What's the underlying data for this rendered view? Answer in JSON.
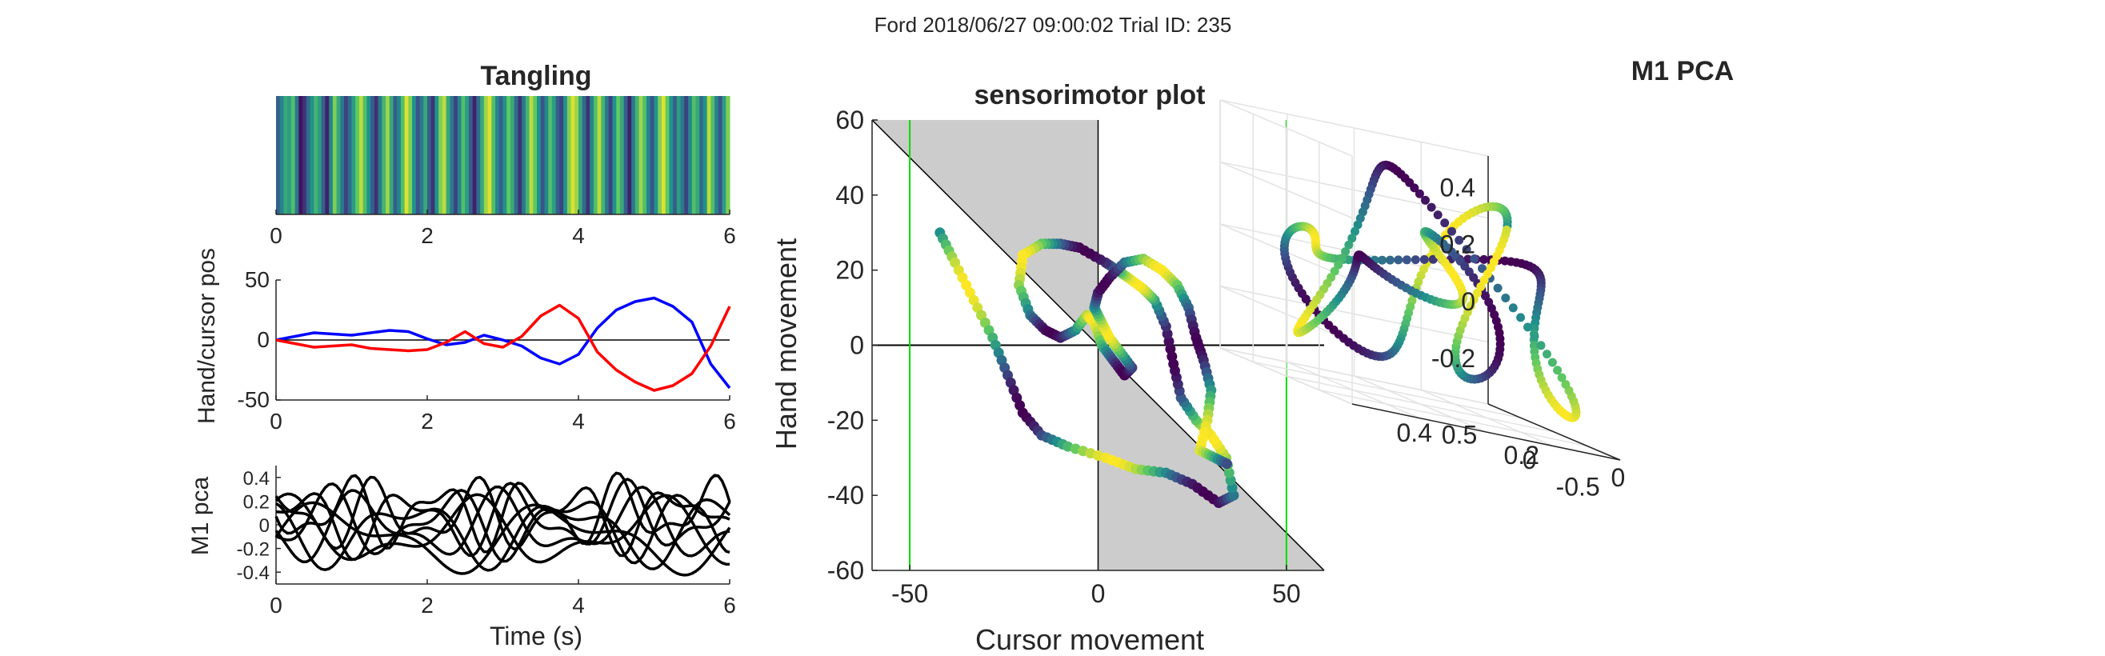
{
  "figure": {
    "suptitle": "Ford 2018/06/27 09:00:02 Trial ID: 235"
  },
  "colors": {
    "hand": "#0000ff",
    "cursor": "#ff0000",
    "pca_lines": "#000000",
    "shade": "#cccccc",
    "limit_lines": "#00dd00",
    "axis": "#262626",
    "viridis": [
      "#440154",
      "#3b528b",
      "#21918c",
      "#5ec962",
      "#fde725"
    ]
  },
  "chart_data": [
    {
      "id": "tangling",
      "type": "heatmap",
      "title": "Tangling",
      "xlabel": "",
      "ylabel": "",
      "xlim": [
        0,
        6
      ],
      "xticks": [
        "0",
        "2",
        "4",
        "6"
      ],
      "colormap": "viridis",
      "values": [
        0.3,
        0.45,
        0.6,
        0.55,
        0.7,
        0.4,
        0.05,
        0.15,
        0.35,
        0.5,
        0.65,
        0.55,
        0.3,
        0.1,
        0.45,
        0.8,
        0.6,
        0.4,
        0.2,
        0.35,
        0.55,
        0.75,
        0.9,
        0.7,
        0.5,
        0.3,
        0.15,
        0.4,
        0.65,
        0.85,
        0.6,
        0.3,
        0.45,
        0.7,
        0.95,
        0.8,
        0.5,
        0.25,
        0.4,
        0.6,
        0.3,
        0.15,
        0.5,
        0.8,
        0.9,
        0.6,
        0.4,
        0.2,
        0.45,
        0.7,
        0.55,
        0.3,
        0.1,
        0.35,
        0.6,
        0.85,
        0.95,
        0.7,
        0.45,
        0.3,
        0.5,
        0.75,
        0.6,
        0.35,
        0.15,
        0.4,
        0.65,
        0.9,
        0.75,
        0.5,
        0.25,
        0.45,
        0.7,
        0.55,
        0.3,
        0.2,
        0.5,
        0.8,
        0.95,
        0.85,
        0.6,
        0.35,
        0.15,
        0.45,
        0.7,
        0.9,
        0.65,
        0.4,
        0.2,
        0.5,
        0.75,
        0.6,
        0.3,
        0.1,
        0.4,
        0.65,
        0.85,
        0.7,
        0.45,
        0.25,
        0.5,
        0.8,
        0.95,
        0.75,
        0.5,
        0.3,
        0.55,
        0.4,
        0.2,
        0.45,
        0.7,
        0.6,
        0.35,
        0.5,
        0.9,
        0.7,
        0.45,
        0.25,
        0.55,
        0.8
      ]
    },
    {
      "id": "handcursor",
      "type": "line",
      "title": "",
      "xlabel": "",
      "ylabel": "Hand/cursor pos",
      "xlim": [
        0,
        6
      ],
      "ylim": [
        -50,
        50
      ],
      "xticks": [
        "0",
        "2",
        "4",
        "6"
      ],
      "yticks": [
        "50",
        "0",
        "-50"
      ],
      "zero_line": true,
      "series": [
        {
          "key": "hand",
          "x": [
            0,
            0.25,
            0.5,
            0.75,
            1.0,
            1.25,
            1.5,
            1.75,
            2.0,
            2.25,
            2.5,
            2.75,
            3.0,
            3.25,
            3.5,
            3.75,
            4.0,
            4.25,
            4.5,
            4.75,
            5.0,
            5.25,
            5.5,
            5.75,
            6.0
          ],
          "values": [
            0,
            3,
            6,
            5,
            4,
            6,
            8,
            7,
            1,
            -4,
            -2,
            4,
            0,
            -5,
            -15,
            -20,
            -12,
            10,
            25,
            32,
            35,
            28,
            15,
            -20,
            -40
          ]
        },
        {
          "key": "cursor",
          "x": [
            0,
            0.25,
            0.5,
            0.75,
            1.0,
            1.25,
            1.5,
            1.75,
            2.0,
            2.25,
            2.5,
            2.75,
            3.0,
            3.25,
            3.5,
            3.75,
            4.0,
            4.25,
            4.5,
            4.75,
            5.0,
            5.25,
            5.5,
            5.75,
            6.0
          ],
          "values": [
            0,
            -3,
            -6,
            -5,
            -4,
            -7,
            -8,
            -9,
            -8,
            -2,
            7,
            -3,
            -6,
            3,
            20,
            29,
            18,
            -10,
            -25,
            -35,
            -42,
            -38,
            -28,
            -5,
            28
          ]
        }
      ]
    },
    {
      "id": "m1pca",
      "type": "line",
      "title": "",
      "xlabel": "Time (s)",
      "ylabel": "M1 pca",
      "xlim": [
        0,
        6
      ],
      "ylim": [
        -0.5,
        0.5
      ],
      "xticks": [
        "0",
        "2",
        "4",
        "6"
      ],
      "yticks": [
        "0.4",
        "0.2",
        "0",
        "-0.2",
        "-0.4"
      ],
      "n_series": 8
    },
    {
      "id": "sensorimotor",
      "type": "scatter",
      "title": "sensorimotor plot",
      "xlabel": "Cursor movement",
      "ylabel": "Hand movement",
      "xlim": [
        -60,
        60
      ],
      "ylim": [
        -60,
        60
      ],
      "xticks": [
        "-50",
        "0",
        "50"
      ],
      "yticks": [
        "60",
        "40",
        "20",
        "0",
        "-20",
        "-40",
        "-60"
      ],
      "limit_x": [
        -50,
        50
      ],
      "points": [
        [
          -42,
          30
        ],
        [
          -38,
          22
        ],
        [
          -33,
          12
        ],
        [
          -28,
          2
        ],
        [
          -24,
          -8
        ],
        [
          -20,
          -18
        ],
        [
          -15,
          -24
        ],
        [
          -8,
          -27
        ],
        [
          2,
          -30
        ],
        [
          10,
          -33
        ],
        [
          18,
          -34
        ],
        [
          25,
          -37
        ],
        [
          32,
          -42
        ],
        [
          36,
          -40
        ],
        [
          34,
          -30
        ],
        [
          30,
          -24
        ],
        [
          26,
          -20
        ],
        [
          22,
          -14
        ],
        [
          20,
          -5
        ],
        [
          18,
          5
        ],
        [
          15,
          12
        ],
        [
          12,
          15
        ],
        [
          8,
          18
        ],
        [
          5,
          20
        ],
        [
          2,
          22
        ],
        [
          -5,
          26
        ],
        [
          -10,
          27
        ],
        [
          -15,
          27
        ],
        [
          -20,
          24
        ],
        [
          -21,
          16
        ],
        [
          -18,
          8
        ],
        [
          -14,
          4
        ],
        [
          -10,
          2
        ],
        [
          -6,
          4
        ],
        [
          -3,
          8
        ],
        [
          -1,
          6
        ],
        [
          1,
          0
        ],
        [
          4,
          -4
        ],
        [
          7,
          -8
        ],
        [
          9,
          -6
        ],
        [
          6,
          -2
        ],
        [
          3,
          2
        ],
        [
          1,
          6
        ],
        [
          -1,
          10
        ],
        [
          0,
          14
        ],
        [
          3,
          18
        ],
        [
          7,
          22
        ],
        [
          12,
          23
        ],
        [
          17,
          20
        ],
        [
          21,
          16
        ],
        [
          24,
          10
        ],
        [
          26,
          2
        ],
        [
          28,
          -4
        ],
        [
          30,
          -12
        ],
        [
          29,
          -20
        ],
        [
          27,
          -28
        ],
        [
          31,
          -30
        ],
        [
          35,
          -32
        ]
      ]
    },
    {
      "id": "m1pca3d",
      "type": "scatter",
      "title": "M1 PCA",
      "xlabel": "",
      "ylabel": "",
      "zticks": [
        "0.4",
        "0.2",
        "0",
        "-0.2"
      ],
      "yticks": [
        "0.5",
        "0",
        "-0.5"
      ],
      "xticks": [
        "0",
        "0.2",
        "0.4"
      ]
    }
  ]
}
